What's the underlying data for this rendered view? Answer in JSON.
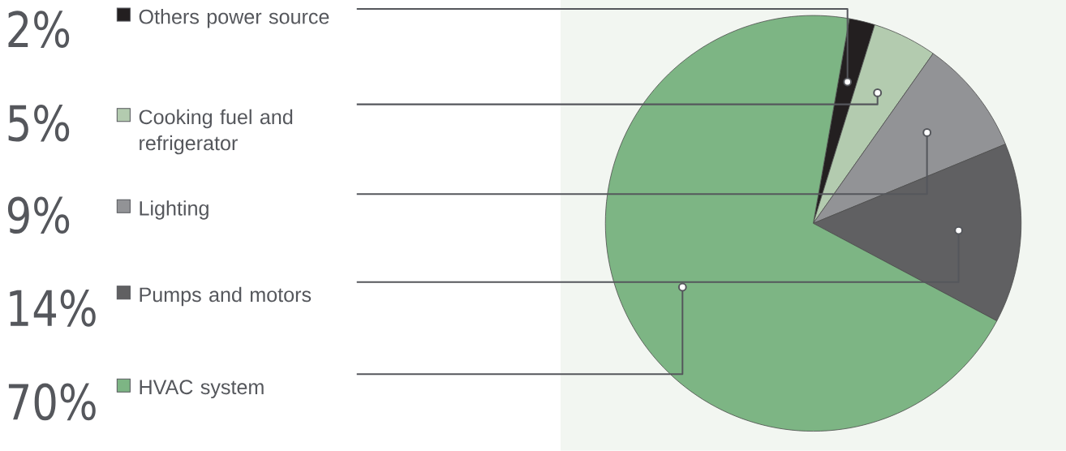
{
  "chart_data": {
    "type": "pie",
    "categories": [
      "Others power source",
      "Cooking fuel and refrigerator",
      "Lighting",
      "Pumps and motors",
      "HVAC system"
    ],
    "values": [
      2,
      5,
      9,
      14,
      70
    ],
    "colors": [
      "#231f20",
      "#b3cbaf",
      "#929396",
      "#606062",
      "#7db584"
    ],
    "value_labels": [
      "2%",
      "5%",
      "9%",
      "14%",
      "70%"
    ],
    "legend": "left"
  }
}
